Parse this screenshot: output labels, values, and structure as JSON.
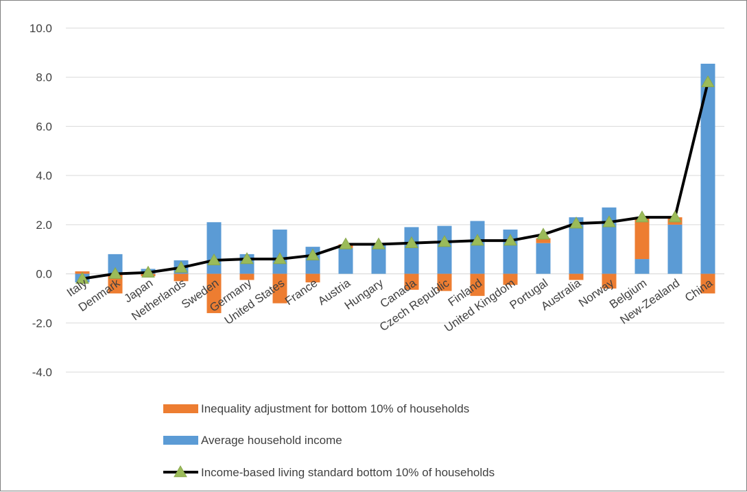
{
  "chart_data": {
    "type": "bar",
    "title": "",
    "xlabel": "",
    "ylabel": "",
    "ylim": [
      -4.0,
      10.0
    ],
    "yticks": [
      "-4.0",
      "-2.0",
      "0.0",
      "2.0",
      "4.0",
      "6.0",
      "8.0",
      "10.0"
    ],
    "grid": true,
    "stacked": true,
    "legend_position": "bottom",
    "categories": [
      "Italy",
      "Denmark",
      "Japan",
      "Netherlands",
      "Sweden",
      "Germany",
      "United States",
      "France",
      "Austria",
      "Hungary",
      "Canada",
      "Czech Republic",
      "Finland",
      "United Kingdom",
      "Portugal",
      "Australia",
      "Norway",
      "Belgium",
      "New-Zealand",
      "China"
    ],
    "series": [
      {
        "name": "Inequality adjustment for bottom 10% of households",
        "type": "bar",
        "color": "#ED7D31",
        "values": [
          0.1,
          -0.8,
          -0.1,
          -0.3,
          -1.6,
          -0.25,
          -1.2,
          -0.35,
          0.15,
          0.0,
          -0.65,
          -0.7,
          -0.9,
          -0.45,
          0.2,
          -0.25,
          -0.6,
          1.7,
          0.3,
          -0.8
        ]
      },
      {
        "name": "Average household income",
        "type": "bar",
        "color": "#5B9BD5",
        "values": [
          -0.35,
          0.8,
          0.2,
          0.55,
          2.1,
          0.8,
          1.8,
          1.1,
          1.05,
          1.2,
          1.9,
          1.95,
          2.15,
          1.8,
          1.25,
          2.3,
          2.7,
          0.6,
          2.0,
          8.55
        ]
      },
      {
        "name": "Income-based living standard bottom 10% of households",
        "type": "line",
        "color": "#000000",
        "marker_color": "#9BBB59",
        "values": [
          -0.2,
          0.0,
          0.05,
          0.25,
          0.55,
          0.6,
          0.6,
          0.75,
          1.2,
          1.2,
          1.25,
          1.3,
          1.35,
          1.35,
          1.6,
          2.05,
          2.1,
          2.3,
          2.3,
          7.8
        ]
      }
    ]
  }
}
